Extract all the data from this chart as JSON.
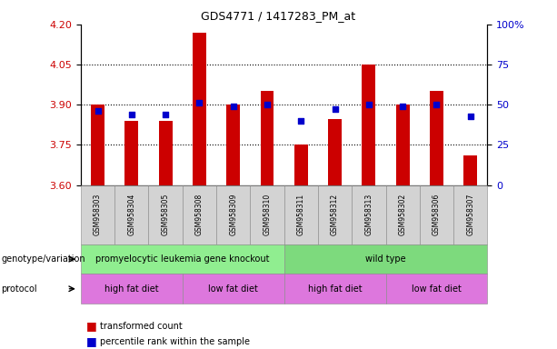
{
  "title": "GDS4771 / 1417283_PM_at",
  "samples": [
    "GSM958303",
    "GSM958304",
    "GSM958305",
    "GSM958308",
    "GSM958309",
    "GSM958310",
    "GSM958311",
    "GSM958312",
    "GSM958313",
    "GSM958302",
    "GSM958306",
    "GSM958307"
  ],
  "transformed_count": [
    3.9,
    3.84,
    3.84,
    4.17,
    3.9,
    3.95,
    3.75,
    3.845,
    4.05,
    3.9,
    3.95,
    3.71
  ],
  "percentile_rank": [
    46,
    44,
    44,
    51,
    49,
    50,
    40,
    47,
    50,
    49,
    50,
    43
  ],
  "y_min": 3.6,
  "y_max": 4.2,
  "y_ticks": [
    3.6,
    3.75,
    3.9,
    4.05,
    4.2
  ],
  "y_right_ticks_vals": [
    0,
    25,
    50,
    75,
    100
  ],
  "y_right_ticks_labels": [
    "0",
    "25",
    "50",
    "75",
    "100%"
  ],
  "bar_color": "#cc0000",
  "dot_color": "#0000cc",
  "bar_bottom": 3.6,
  "geno_color_left": "#90ee90",
  "geno_color_right": "#7dda7d",
  "proto_color": "#dd77dd",
  "axis_label_color_left": "#cc0000",
  "axis_label_color_right": "#0000cc",
  "genotype_groups": [
    {
      "label": "promyelocytic leukemia gene knockout",
      "start": 0,
      "end": 6
    },
    {
      "label": "wild type",
      "start": 6,
      "end": 12
    }
  ],
  "protocol_groups": [
    {
      "label": "high fat diet",
      "start": 0,
      "end": 3
    },
    {
      "label": "low fat diet",
      "start": 3,
      "end": 6
    },
    {
      "label": "high fat diet",
      "start": 6,
      "end": 9
    },
    {
      "label": "low fat diet",
      "start": 9,
      "end": 12
    }
  ]
}
